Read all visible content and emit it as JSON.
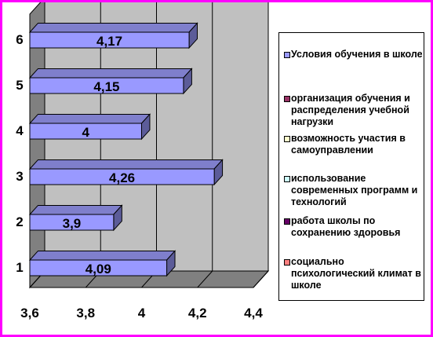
{
  "chart_data": {
    "type": "bar",
    "orientation": "horizontal",
    "categories": [
      "1",
      "2",
      "3",
      "4",
      "5",
      "6"
    ],
    "values": [
      4.09,
      3.9,
      4.26,
      4,
      4.15,
      4.17
    ],
    "value_labels": [
      "4,09",
      "3,9",
      "4,26",
      "4",
      "4,15",
      "4,17"
    ],
    "xlim": [
      3.6,
      4.4
    ],
    "x_ticks": [
      "3,6",
      "3,8",
      "4",
      "4,2",
      "4,4"
    ],
    "grid": true,
    "three_d": true,
    "bar_color": "#9999ff",
    "legend_position": "right",
    "legend": [
      {
        "label": "Условия обучения в школе",
        "color": "#9999ff"
      },
      {
        "label": "организация обучения и распределения учебной нагрузки",
        "color": "#993366"
      },
      {
        "label": "возможность участия в самоуправлении",
        "color": "#ffffcc"
      },
      {
        "label": "использование современных программ и технологий",
        "color": "#ccffff"
      },
      {
        "label": "работа школы по сохранению здоровья",
        "color": "#660066"
      },
      {
        "label": "социально психологический климат в школе",
        "color": "#ff8080"
      }
    ]
  },
  "colors": {
    "border": "#ff00ff",
    "plot_wall": "#c0c0c0",
    "floor": "#808080"
  }
}
